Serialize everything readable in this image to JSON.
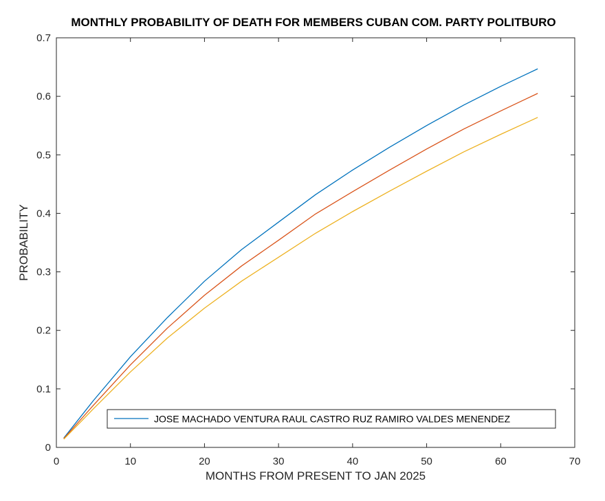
{
  "chart_data": {
    "type": "line",
    "title": "MONTHLY PROBABILITY OF DEATH FOR MEMBERS CUBAN COM. PARTY POLITBURO",
    "xlabel": "MONTHS FROM PRESENT TO JAN 2025",
    "ylabel": "PROBABILITY",
    "xlim": [
      0,
      70
    ],
    "ylim": [
      0,
      0.7
    ],
    "x_ticks": [
      0,
      10,
      20,
      30,
      40,
      50,
      60,
      70
    ],
    "y_ticks": [
      0,
      0.1,
      0.2,
      0.3,
      0.4,
      0.5,
      0.6,
      0.7
    ],
    "x_tick_labels": [
      "0",
      "10",
      "20",
      "30",
      "40",
      "50",
      "60",
      "70"
    ],
    "y_tick_labels": [
      "0",
      "0.1",
      "0.2",
      "0.3",
      "0.4",
      "0.5",
      "0.6",
      "0.7"
    ],
    "grid": false,
    "legend": {
      "text": "JOSE MACHADO VENTURA RAUL CASTRO RUZ RAMIRO VALDES MENENDEZ",
      "placement": "bottom",
      "color": "#0072BD"
    },
    "x": [
      1,
      5,
      10,
      15,
      20,
      25,
      30,
      35,
      40,
      45,
      50,
      55,
      60,
      65
    ],
    "series": [
      {
        "color": "#0072BD",
        "values": [
          0.016,
          0.08,
          0.155,
          0.222,
          0.284,
          0.338,
          0.385,
          0.432,
          0.474,
          0.513,
          0.55,
          0.585,
          0.617,
          0.647
        ]
      },
      {
        "color": "#D95319",
        "values": [
          0.015,
          0.072,
          0.141,
          0.204,
          0.26,
          0.31,
          0.354,
          0.399,
          0.437,
          0.474,
          0.51,
          0.544,
          0.575,
          0.605
        ]
      },
      {
        "color": "#EDB120",
        "values": [
          0.014,
          0.066,
          0.129,
          0.187,
          0.238,
          0.284,
          0.325,
          0.366,
          0.403,
          0.438,
          0.472,
          0.505,
          0.535,
          0.564
        ]
      }
    ]
  }
}
